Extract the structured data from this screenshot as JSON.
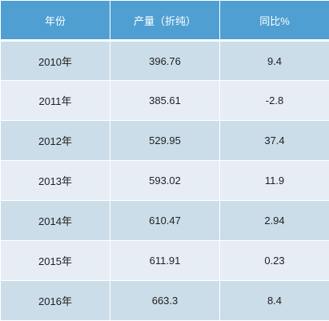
{
  "chart_data": {
    "type": "table",
    "columns": [
      "年份",
      "产量（折纯）",
      "同比%"
    ],
    "rows": [
      [
        "2010年",
        "396.76",
        "9.4"
      ],
      [
        "2011年",
        "385.61",
        "-2.8"
      ],
      [
        "2012年",
        "529.95",
        "37.4"
      ],
      [
        "2013年",
        "593.02",
        "11.9"
      ],
      [
        "2014年",
        "610.47",
        "2.94"
      ],
      [
        "2015年",
        "611.91",
        "0.23"
      ],
      [
        "2016年",
        "663.3",
        "8.4"
      ]
    ]
  },
  "colors": {
    "header_bg": "#4f9fd2",
    "row_dark": "#cbdde9",
    "row_light": "#e7edf5"
  }
}
